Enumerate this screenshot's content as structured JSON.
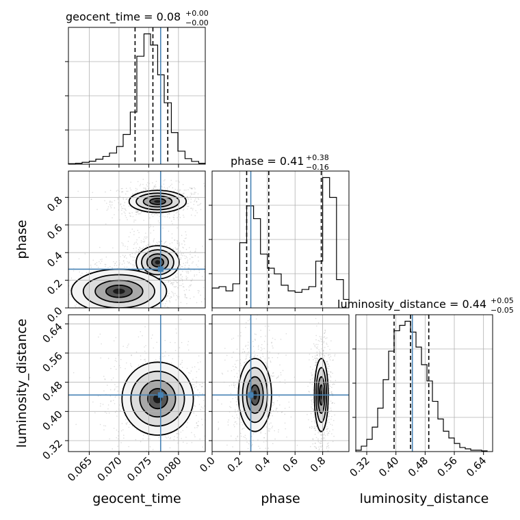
{
  "chart_data": {
    "type": "corner",
    "parameters": [
      "geocent_time",
      "phase",
      "luminosity_distance"
    ],
    "axis_labels": {
      "geocent_time": "geocent_time",
      "phase": "phase",
      "luminosity_distance": "luminosity_distance"
    },
    "ranges": {
      "geocent_time": [
        0.0615,
        0.0845
      ],
      "phase": [
        0.0,
        0.99
      ],
      "luminosity_distance": [
        0.29,
        0.665
      ]
    },
    "ticks": {
      "geocent_time": [
        "0.065",
        "0.070",
        "0.075",
        "0.080"
      ],
      "phase": [
        "0.0",
        "0.2",
        "0.4",
        "0.6",
        "0.8"
      ],
      "phase_y": [
        "0.0",
        "0.2",
        "0.4",
        "0.6",
        "0.8"
      ],
      "luminosity_distance": [
        "0.32",
        "0.40",
        "0.48",
        "0.56",
        "0.64"
      ]
    },
    "truths": {
      "geocent_time": 0.077,
      "phase": 0.28,
      "luminosity_distance": 0.445
    },
    "titles": {
      "geocent_time": {
        "text": "geocent_time = 0.08",
        "plus": "+0.00",
        "minus": "−0.00"
      },
      "phase": {
        "text": "phase = 0.41",
        "plus": "+0.38",
        "minus": "−0.16"
      },
      "luminosity_distance": {
        "text": "luminosity_distance = 0.44",
        "plus": "+0.05",
        "minus": "−0.05"
      }
    },
    "quantiles": {
      "geocent_time": [
        0.0727,
        0.0757,
        0.0782
      ],
      "phase": [
        0.25,
        0.41,
        0.79
      ],
      "luminosity_distance": [
        0.395,
        0.44,
        0.49
      ]
    },
    "marginals": {
      "geocent_time": {
        "edges": [
          0.0615,
          0.0627,
          0.0638,
          0.065,
          0.0661,
          0.0673,
          0.0684,
          0.0696,
          0.0707,
          0.0719,
          0.073,
          0.0742,
          0.0753,
          0.0765,
          0.0776,
          0.0788,
          0.0799,
          0.0811,
          0.0822,
          0.0834,
          0.0845
        ],
        "counts": [
          0.3,
          0.5,
          1.0,
          1.6,
          2.7,
          4.2,
          6.0,
          9.5,
          16.0,
          28.0,
          58.0,
          70.0,
          64.0,
          48.0,
          33.0,
          17.0,
          7.0,
          3.0,
          1.5,
          0.5
        ]
      },
      "phase": {
        "edges": [
          0.0,
          0.05,
          0.1,
          0.15,
          0.2,
          0.25,
          0.3,
          0.35,
          0.4,
          0.45,
          0.5,
          0.55,
          0.6,
          0.65,
          0.7,
          0.75,
          0.8,
          0.85,
          0.9,
          0.95,
          0.99
        ],
        "counts": [
          14,
          15,
          12,
          17,
          46,
          72,
          63,
          38,
          28,
          24,
          16,
          12,
          11,
          13,
          15,
          33,
          92,
          78,
          20,
          6
        ]
      },
      "luminosity_distance": {
        "edges": [
          0.29,
          0.305,
          0.32,
          0.335,
          0.35,
          0.365,
          0.38,
          0.395,
          0.41,
          0.425,
          0.44,
          0.455,
          0.47,
          0.485,
          0.5,
          0.515,
          0.53,
          0.545,
          0.56,
          0.575,
          0.59,
          0.605,
          0.62,
          0.635,
          0.65
        ],
        "counts": [
          1,
          4,
          9,
          18,
          32,
          53,
          74,
          89,
          93,
          96,
          88,
          77,
          64,
          52,
          37,
          24,
          15,
          10,
          6,
          3,
          2,
          1,
          1,
          0.5
        ]
      }
    },
    "joint_clusters": {
      "phase_vs_geocent_time": [
        {
          "center": [
            0.0765,
            0.77
          ],
          "sigma": [
            0.0024,
            0.04
          ]
        },
        {
          "center": [
            0.0765,
            0.33
          ],
          "sigma": [
            0.0018,
            0.06
          ]
        },
        {
          "center": [
            0.07,
            0.12
          ],
          "sigma": [
            0.004,
            0.08
          ]
        }
      ],
      "luminosity_distance_vs_geocent_time": [
        {
          "center": [
            0.0765,
            0.435
          ],
          "sigma": [
            0.003,
            0.05
          ]
        }
      ],
      "luminosity_distance_vs_phase": [
        {
          "center": [
            0.31,
            0.445
          ],
          "sigma": [
            0.06,
            0.05
          ]
        },
        {
          "center": [
            0.79,
            0.445
          ],
          "sigma": [
            0.025,
            0.05
          ]
        }
      ]
    }
  }
}
